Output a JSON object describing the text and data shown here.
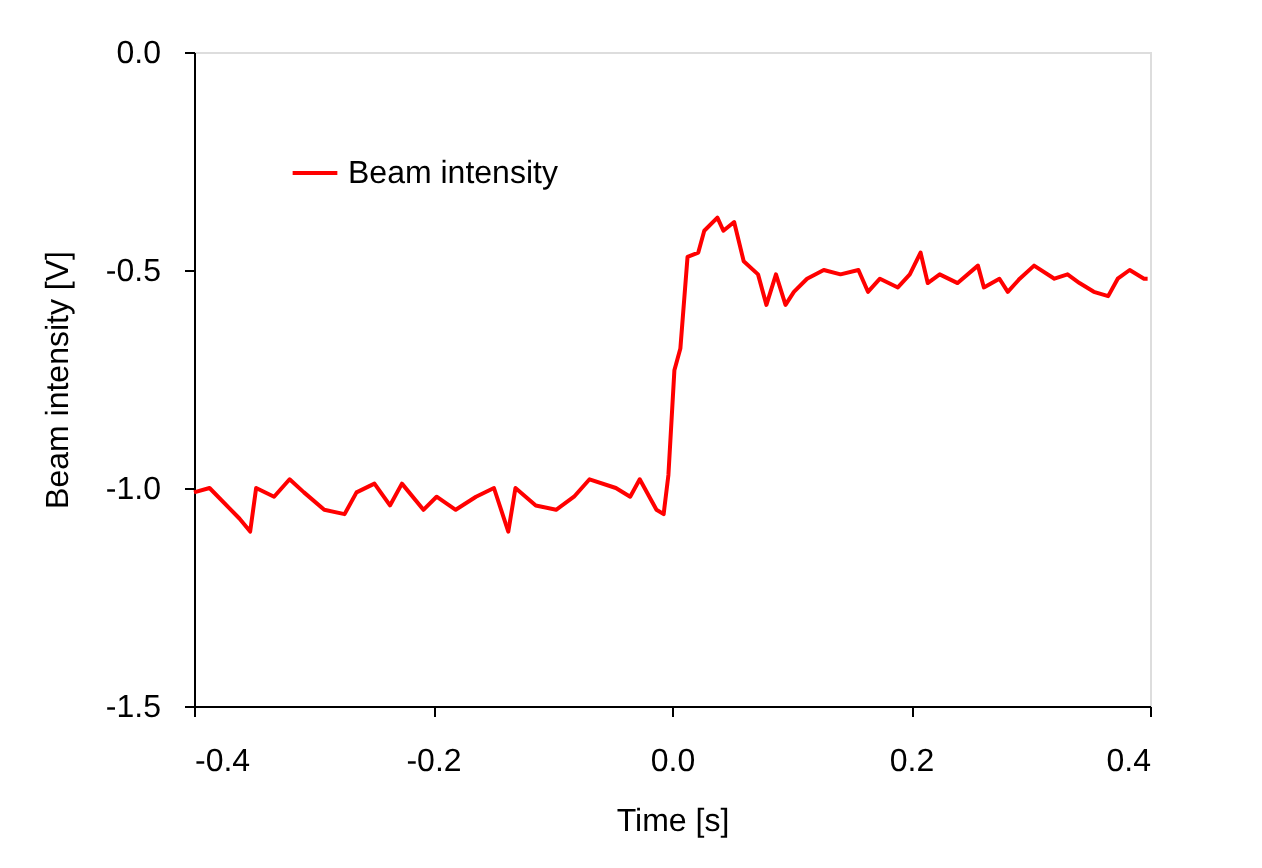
{
  "chart_data": {
    "type": "line",
    "xlabel": "Time [s]",
    "ylabel": "Beam intensity [V]",
    "xlim": [
      -0.4,
      0.4
    ],
    "ylim": [
      -1.5,
      0.0
    ],
    "xticks": [
      -0.4,
      -0.2,
      {
        "value": 0,
        "label": "0.0"
      },
      0.2,
      0.4
    ],
    "yticks": [
      -1.5,
      {
        "value": -1,
        "label": "-1.0"
      },
      -0.5,
      {
        "value": 0,
        "label": "0.0"
      }
    ],
    "grid": false,
    "legend": "top left",
    "marker": "none",
    "line_style": "solid",
    "series": [
      {
        "name": "Beam intensity",
        "color": "#ff0000",
        "x": [
          -0.4,
          -0.387,
          -0.362,
          -0.353,
          -0.348,
          -0.333,
          -0.32,
          -0.308,
          -0.291,
          -0.274,
          -0.264,
          -0.249,
          -0.236,
          -0.226,
          -0.208,
          -0.197,
          -0.181,
          -0.164,
          -0.149,
          -0.137,
          -0.131,
          -0.114,
          -0.097,
          -0.082,
          -0.069,
          -0.047,
          -0.035,
          -0.027,
          -0.013,
          -0.007,
          -0.003,
          0.002,
          0.007,
          0.013,
          0.022,
          0.027,
          0.038,
          0.043,
          0.052,
          0.06,
          0.072,
          0.079,
          0.087,
          0.095,
          0.102,
          0.113,
          0.127,
          0.141,
          0.156,
          0.164,
          0.174,
          0.189,
          0.199,
          0.208,
          0.214,
          0.224,
          0.239,
          0.256,
          0.261,
          0.274,
          0.281,
          0.291,
          0.303,
          0.32,
          0.331,
          0.341,
          0.353,
          0.365,
          0.373,
          0.383,
          0.395,
          0.398
        ],
        "values": [
          -1.01,
          -1.0,
          -1.07,
          -1.1,
          -1.0,
          -1.02,
          -0.98,
          -1.01,
          -1.05,
          -1.06,
          -1.01,
          -0.99,
          -1.04,
          -0.99,
          -1.05,
          -1.02,
          -1.05,
          -1.02,
          -1.0,
          -1.1,
          -1.0,
          -1.04,
          -1.05,
          -1.02,
          -0.98,
          -1.0,
          -1.02,
          -0.98,
          -1.05,
          -1.06,
          -0.97,
          -0.73,
          -0.68,
          -0.47,
          -0.46,
          -0.41,
          -0.38,
          -0.41,
          -0.39,
          -0.48,
          -0.51,
          -0.58,
          -0.51,
          -0.58,
          -0.55,
          -0.52,
          -0.5,
          -0.51,
          -0.5,
          -0.55,
          -0.52,
          -0.54,
          -0.51,
          -0.46,
          -0.53,
          -0.51,
          -0.53,
          -0.49,
          -0.54,
          -0.52,
          -0.55,
          -0.52,
          -0.49,
          -0.52,
          -0.51,
          -0.53,
          -0.55,
          -0.56,
          -0.52,
          -0.5,
          -0.52,
          -0.52
        ]
      }
    ]
  }
}
